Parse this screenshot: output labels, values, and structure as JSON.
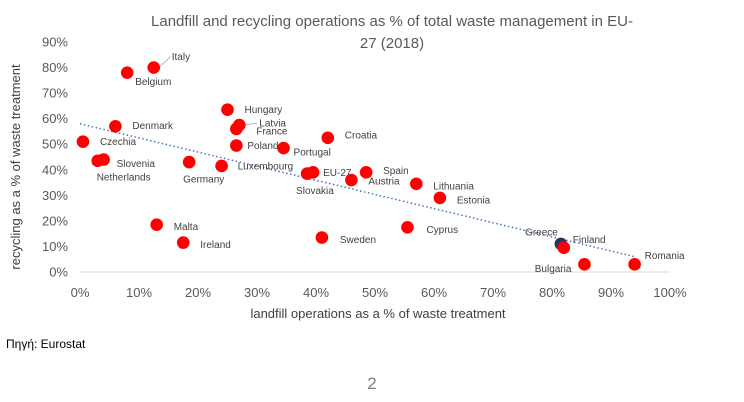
{
  "chart_data": {
    "type": "scatter",
    "title": "Landfill and recycling operations as % of total waste management in EU-27 (2018)",
    "title_lines": [
      "Landfill and recycling operations as % of total waste management in EU-",
      "27 (2018)"
    ],
    "xlabel": "landfill operations as a % of waste treatment",
    "ylabel": "recycling as a % of waste treatment",
    "xlim": [
      0,
      100
    ],
    "ylim": [
      0,
      90
    ],
    "x_ticks": [
      "0%",
      "10%",
      "20%",
      "30%",
      "40%",
      "50%",
      "60%",
      "70%",
      "80%",
      "90%",
      "100%"
    ],
    "y_ticks": [
      "0%",
      "10%",
      "20%",
      "30%",
      "40%",
      "50%",
      "60%",
      "70%",
      "80%",
      "90%"
    ],
    "grid": false,
    "trendline": {
      "type": "linear",
      "from": [
        0,
        58
      ],
      "to": [
        94,
        6
      ]
    },
    "colors": {
      "point": "#ff0000",
      "highlight": "#1f3864",
      "trend": "#4472c4",
      "text": "#595959"
    },
    "points": [
      {
        "label": "Italy",
        "x": 12.5,
        "y": 80
      },
      {
        "label": "Belgium",
        "x": 8,
        "y": 78
      },
      {
        "label": "Hungary",
        "x": 25,
        "y": 63.5
      },
      {
        "label": "Latvia",
        "x": 27,
        "y": 57.5
      },
      {
        "label": "France",
        "x": 26.5,
        "y": 56
      },
      {
        "label": "Denmark",
        "x": 6,
        "y": 57
      },
      {
        "label": "Croatia",
        "x": 42,
        "y": 52.5
      },
      {
        "label": "Czechia",
        "x": 0.5,
        "y": 51
      },
      {
        "label": "Poland",
        "x": 26.5,
        "y": 49.5
      },
      {
        "label": "Portugal",
        "x": 34.5,
        "y": 48.5
      },
      {
        "label": "Slovenia",
        "x": 4,
        "y": 44
      },
      {
        "label": "Netherlands",
        "x": 3,
        "y": 43.5
      },
      {
        "label": "Germany",
        "x": 18.5,
        "y": 43
      },
      {
        "label": "Luxembourg",
        "x": 24,
        "y": 41.5
      },
      {
        "label": "Slovakia",
        "x": 39.5,
        "y": 39
      },
      {
        "label": "EU-27",
        "x": 38.5,
        "y": 38.5,
        "leader": true
      },
      {
        "label": "Spain",
        "x": 48.5,
        "y": 39
      },
      {
        "label": "Austria",
        "x": 46,
        "y": 36
      },
      {
        "label": "Lithuania",
        "x": 57,
        "y": 34.5
      },
      {
        "label": "Estonia",
        "x": 61,
        "y": 29
      },
      {
        "label": "Malta",
        "x": 13,
        "y": 18.5
      },
      {
        "label": "Ireland",
        "x": 17.5,
        "y": 11.5
      },
      {
        "label": "Sweden",
        "x": 41,
        "y": 13.5
      },
      {
        "label": "Cyprus",
        "x": 55.5,
        "y": 17.5
      },
      {
        "label": "Greece",
        "x": 81.5,
        "y": 11,
        "highlight": true
      },
      {
        "label": "Finland",
        "x": 82,
        "y": 9.5
      },
      {
        "label": "Bulgaria",
        "x": 85.5,
        "y": 3
      },
      {
        "label": "Romania",
        "x": 94,
        "y": 3
      }
    ]
  },
  "footer": {
    "source": "Πηγή: Eurostat",
    "page_number": "2"
  }
}
